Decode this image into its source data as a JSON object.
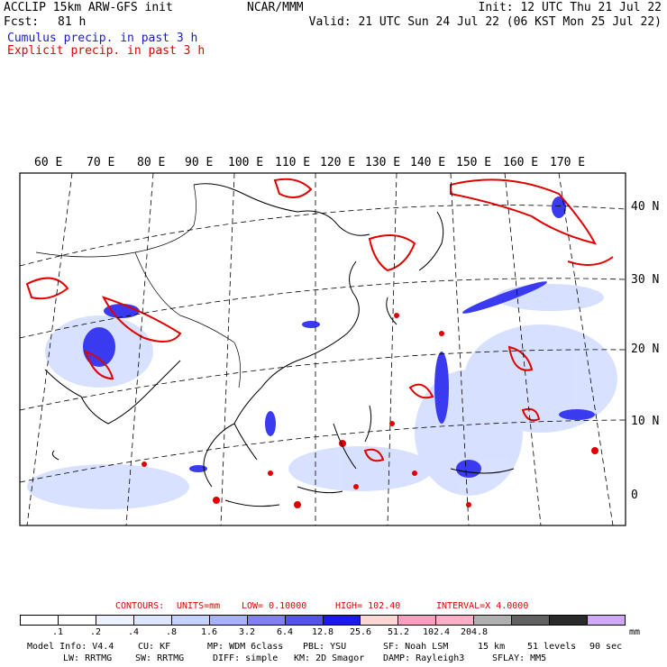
{
  "header": {
    "model_line": "ACCLIP 15km ARW-GFS init",
    "fcst_label": "Fcst:",
    "fcst_value": "81 h",
    "org": "NCAR/MMM",
    "init": "Init: 12 UTC Thu 21 Jul 22",
    "valid": "Valid: 21 UTC Sun 24 Jul 22 (06 KST Mon 25 Jul 22)",
    "legend_cumulus": "Cumulus precip. in past 3 h",
    "legend_explicit": "Explicit precip. in past 3 h"
  },
  "colors": {
    "cumulus": "#1a1acc",
    "explicit": "#e00000"
  },
  "map": {
    "lon_labels": [
      "60 E",
      "70 E",
      "80 E",
      "90 E",
      "100 E",
      "110 E",
      "120 E",
      "130 E",
      "140 E",
      "150 E",
      "160 E",
      "170 E"
    ],
    "lat_labels": [
      "40 N",
      "30 N",
      "20 N",
      "10 N",
      "0"
    ]
  },
  "contours": {
    "label": "CONTOURS:",
    "units": "UNITS=mm",
    "low": "LOW= 0.10000",
    "high": "HIGH= 102.40",
    "interval": "INTERVAL=X 4.0000"
  },
  "colorbar": {
    "colors": [
      "#ffffff",
      "#ffffff",
      "#eef2ff",
      "#dde6ff",
      "#c6d2ff",
      "#a9b2ff",
      "#8080f0",
      "#5555ee",
      "#1a1af0",
      "#ffd6d6",
      "#ff9fbf",
      "#ffb0c8",
      "#b0b0b0",
      "#606060",
      "#2a2a2a",
      "#d0a8f8"
    ],
    "labels": [
      ".1",
      ".2",
      ".4",
      ".8",
      "1.6",
      "3.2",
      "6.4",
      "12.8",
      "25.6",
      "51.2",
      "102.4",
      "204.8"
    ],
    "unit": "mm"
  },
  "footer": {
    "line1": [
      "Model Info: V4.4",
      "CU: KF",
      "MP: WDM 6class",
      "PBL: YSU",
      "SF: Noah LSM",
      "15 km",
      "51 levels",
      "90 sec"
    ],
    "line2": [
      "LW: RRTMG",
      "SW: RRTMG",
      "DIFF: simple",
      "KM: 2D Smagor",
      "DAMP: Rayleigh3",
      "SFLAY: MM5"
    ]
  }
}
